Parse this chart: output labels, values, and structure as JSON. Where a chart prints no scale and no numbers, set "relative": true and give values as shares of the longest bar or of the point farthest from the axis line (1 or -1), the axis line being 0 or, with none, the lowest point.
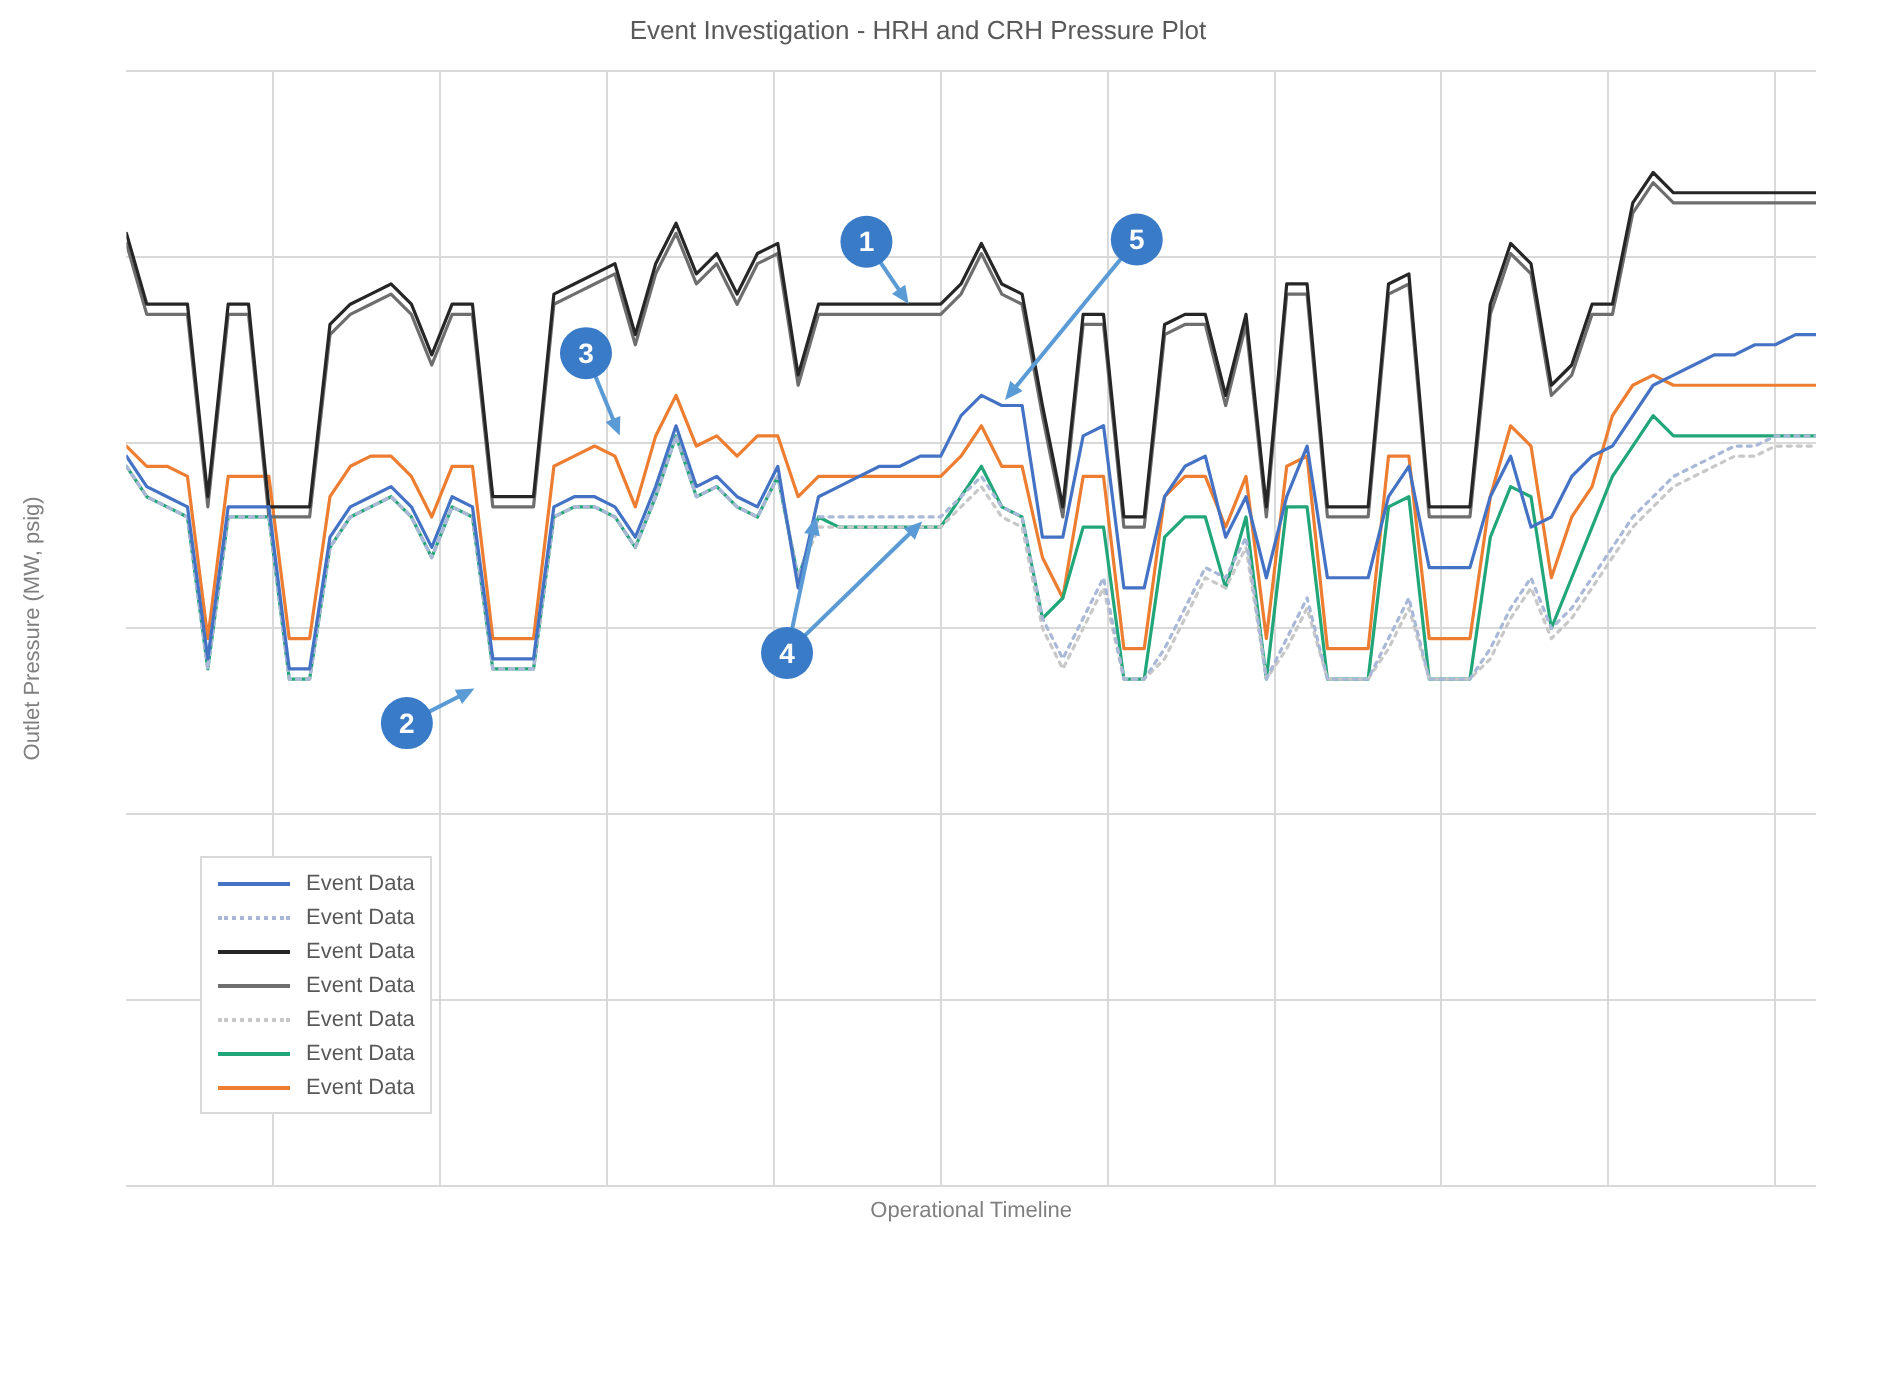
{
  "chart_data": {
    "type": "line",
    "title": "Event Investigation - HRH and CRH Pressure Plot",
    "xlabel": "Operational Timeline",
    "ylabel": "Outlet Pressure (MW, psig)",
    "relative": true,
    "grid": true,
    "legend": "bottom left",
    "marker": "none",
    "categories": [
      null,
      null,
      null,
      null,
      null,
      null,
      null,
      null,
      null,
      null,
      null,
      null,
      null,
      null,
      null,
      null,
      null,
      null,
      null,
      null,
      null,
      null,
      null,
      null,
      null,
      null,
      null,
      null,
      null,
      null,
      null,
      null,
      null,
      null,
      null,
      null,
      null,
      null,
      null,
      null,
      null,
      null,
      null,
      null,
      null,
      null,
      null,
      null,
      null,
      null,
      null,
      null,
      null,
      null,
      null,
      null,
      null,
      null,
      null,
      null,
      null,
      null,
      null,
      null,
      null,
      null,
      null,
      null,
      null,
      null,
      null,
      null,
      null,
      null,
      null,
      null,
      null,
      null,
      null,
      null,
      null,
      null,
      null,
      null
    ],
    "annotations": [
      "1",
      "2",
      "3",
      "4",
      "5"
    ],
    "series": [
      {
        "name": "Event Data",
        "color": "#4472c4",
        "line_style": "solid",
        "values": [
          0.72,
          0.69,
          0.68,
          0.67,
          0.52,
          0.67,
          0.67,
          0.67,
          0.51,
          0.51,
          0.64,
          0.67,
          0.68,
          0.69,
          0.67,
          0.63,
          0.68,
          0.67,
          0.52,
          0.52,
          0.52,
          0.67,
          0.68,
          0.68,
          0.67,
          0.64,
          0.69,
          0.75,
          0.69,
          0.7,
          0.68,
          0.67,
          0.71,
          0.59,
          0.68,
          0.69,
          0.7,
          0.71,
          0.71,
          0.72,
          0.72,
          0.76,
          0.78,
          0.77,
          0.77,
          0.64,
          0.64,
          0.74,
          0.75,
          0.59,
          0.59,
          0.68,
          0.71,
          0.72,
          0.64,
          0.68,
          0.6,
          0.68,
          0.73,
          0.6,
          0.6,
          0.6,
          0.68,
          0.71,
          0.61,
          0.61,
          0.61,
          0.68,
          0.72,
          0.65,
          0.66,
          0.7,
          0.72,
          0.73,
          0.76,
          0.79,
          0.8,
          0.81,
          0.82,
          0.82,
          0.83,
          0.83,
          0.84,
          0.84
        ]
      },
      {
        "name": "Event Data",
        "color": "#a9b8d6",
        "line_style": "dotted",
        "values": [
          0.71,
          0.68,
          0.67,
          0.66,
          0.51,
          0.66,
          0.66,
          0.66,
          0.5,
          0.5,
          0.63,
          0.66,
          0.67,
          0.68,
          0.66,
          0.62,
          0.67,
          0.66,
          0.51,
          0.51,
          0.51,
          0.66,
          0.67,
          0.67,
          0.66,
          0.63,
          0.68,
          0.74,
          0.68,
          0.69,
          0.67,
          0.66,
          0.7,
          0.6,
          0.66,
          0.66,
          0.66,
          0.66,
          0.66,
          0.66,
          0.66,
          0.68,
          0.7,
          0.67,
          0.66,
          0.56,
          0.52,
          0.56,
          0.6,
          0.5,
          0.5,
          0.53,
          0.57,
          0.61,
          0.6,
          0.64,
          0.5,
          0.54,
          0.58,
          0.5,
          0.5,
          0.5,
          0.54,
          0.58,
          0.5,
          0.5,
          0.5,
          0.53,
          0.57,
          0.6,
          0.55,
          0.57,
          0.6,
          0.63,
          0.66,
          0.68,
          0.7,
          0.71,
          0.72,
          0.73,
          0.73,
          0.74,
          0.74,
          0.74
        ]
      },
      {
        "name": "Event Data",
        "color": "#262626",
        "line_style": "solid",
        "values": [
          0.94,
          0.87,
          0.87,
          0.87,
          0.68,
          0.87,
          0.87,
          0.67,
          0.67,
          0.67,
          0.85,
          0.87,
          0.88,
          0.89,
          0.87,
          0.82,
          0.87,
          0.87,
          0.68,
          0.68,
          0.68,
          0.88,
          0.89,
          0.9,
          0.91,
          0.84,
          0.91,
          0.95,
          0.9,
          0.92,
          0.88,
          0.92,
          0.93,
          0.8,
          0.87,
          0.87,
          0.87,
          0.87,
          0.87,
          0.87,
          0.87,
          0.89,
          0.93,
          0.89,
          0.88,
          0.77,
          0.67,
          0.86,
          0.86,
          0.66,
          0.66,
          0.85,
          0.86,
          0.86,
          0.78,
          0.86,
          0.67,
          0.89,
          0.89,
          0.67,
          0.67,
          0.67,
          0.89,
          0.9,
          0.67,
          0.67,
          0.67,
          0.87,
          0.93,
          0.91,
          0.79,
          0.81,
          0.87,
          0.87,
          0.97,
          1.0,
          0.98,
          0.98,
          0.98,
          0.98,
          0.98,
          0.98,
          0.98,
          0.98
        ]
      },
      {
        "name": "Event Data",
        "color": "#6e6e6e",
        "line_style": "solid",
        "values": [
          0.93,
          0.86,
          0.86,
          0.86,
          0.67,
          0.86,
          0.86,
          0.66,
          0.66,
          0.66,
          0.84,
          0.86,
          0.87,
          0.88,
          0.86,
          0.81,
          0.86,
          0.86,
          0.67,
          0.67,
          0.67,
          0.87,
          0.88,
          0.89,
          0.9,
          0.83,
          0.9,
          0.94,
          0.89,
          0.91,
          0.87,
          0.91,
          0.92,
          0.79,
          0.86,
          0.86,
          0.86,
          0.86,
          0.86,
          0.86,
          0.86,
          0.88,
          0.92,
          0.88,
          0.87,
          0.76,
          0.66,
          0.85,
          0.85,
          0.65,
          0.65,
          0.84,
          0.85,
          0.85,
          0.77,
          0.85,
          0.66,
          0.88,
          0.88,
          0.66,
          0.66,
          0.66,
          0.88,
          0.89,
          0.66,
          0.66,
          0.66,
          0.86,
          0.92,
          0.9,
          0.78,
          0.8,
          0.86,
          0.86,
          0.96,
          0.99,
          0.97,
          0.97,
          0.97,
          0.97,
          0.97,
          0.97,
          0.97,
          0.97
        ]
      },
      {
        "name": "Event Data",
        "color": "#c8c8c8",
        "line_style": "dotted",
        "values": [
          0.71,
          0.68,
          0.67,
          0.66,
          0.51,
          0.66,
          0.66,
          0.66,
          0.5,
          0.5,
          0.63,
          0.66,
          0.67,
          0.68,
          0.66,
          0.62,
          0.67,
          0.66,
          0.51,
          0.51,
          0.51,
          0.66,
          0.67,
          0.67,
          0.66,
          0.63,
          0.68,
          0.74,
          0.68,
          0.69,
          0.67,
          0.66,
          0.7,
          0.6,
          0.65,
          0.65,
          0.65,
          0.65,
          0.65,
          0.65,
          0.65,
          0.67,
          0.69,
          0.66,
          0.65,
          0.55,
          0.51,
          0.55,
          0.59,
          0.5,
          0.5,
          0.52,
          0.56,
          0.6,
          0.59,
          0.63,
          0.5,
          0.53,
          0.57,
          0.5,
          0.5,
          0.5,
          0.53,
          0.57,
          0.5,
          0.5,
          0.5,
          0.52,
          0.56,
          0.59,
          0.54,
          0.56,
          0.59,
          0.62,
          0.65,
          0.67,
          0.69,
          0.7,
          0.71,
          0.72,
          0.72,
          0.73,
          0.73,
          0.73
        ]
      },
      {
        "name": "Event Data",
        "color": "#21a67a",
        "line_style": "solid",
        "values": [
          0.71,
          0.68,
          0.67,
          0.66,
          0.51,
          0.66,
          0.66,
          0.66,
          0.5,
          0.5,
          0.63,
          0.66,
          0.67,
          0.68,
          0.66,
          0.62,
          0.67,
          0.66,
          0.51,
          0.51,
          0.51,
          0.66,
          0.67,
          0.67,
          0.66,
          0.63,
          0.68,
          0.74,
          0.68,
          0.69,
          0.67,
          0.66,
          0.7,
          0.6,
          0.66,
          0.65,
          0.65,
          0.65,
          0.65,
          0.65,
          0.65,
          0.68,
          0.71,
          0.67,
          0.66,
          0.56,
          0.58,
          0.65,
          0.65,
          0.5,
          0.5,
          0.64,
          0.66,
          0.66,
          0.59,
          0.66,
          0.5,
          0.67,
          0.67,
          0.5,
          0.5,
          0.5,
          0.67,
          0.68,
          0.5,
          0.5,
          0.5,
          0.64,
          0.69,
          0.68,
          0.55,
          0.6,
          0.65,
          0.7,
          0.73,
          0.76,
          0.74,
          0.74,
          0.74,
          0.74,
          0.74,
          0.74,
          0.74,
          0.74
        ]
      },
      {
        "name": "Event Data",
        "color": "#ed7d31",
        "line_style": "solid",
        "values": [
          0.73,
          0.71,
          0.71,
          0.7,
          0.54,
          0.7,
          0.7,
          0.7,
          0.54,
          0.54,
          0.68,
          0.71,
          0.72,
          0.72,
          0.7,
          0.66,
          0.71,
          0.71,
          0.54,
          0.54,
          0.54,
          0.71,
          0.72,
          0.73,
          0.72,
          0.67,
          0.74,
          0.78,
          0.73,
          0.74,
          0.72,
          0.74,
          0.74,
          0.68,
          0.7,
          0.7,
          0.7,
          0.7,
          0.7,
          0.7,
          0.7,
          0.72,
          0.75,
          0.71,
          0.71,
          0.62,
          0.58,
          0.7,
          0.7,
          0.53,
          0.53,
          0.68,
          0.7,
          0.7,
          0.65,
          0.7,
          0.54,
          0.71,
          0.72,
          0.53,
          0.53,
          0.53,
          0.72,
          0.72,
          0.54,
          0.54,
          0.54,
          0.68,
          0.75,
          0.73,
          0.6,
          0.66,
          0.69,
          0.76,
          0.79,
          0.8,
          0.79,
          0.79,
          0.79,
          0.79,
          0.79,
          0.79,
          0.79,
          0.79
        ]
      }
    ]
  }
}
